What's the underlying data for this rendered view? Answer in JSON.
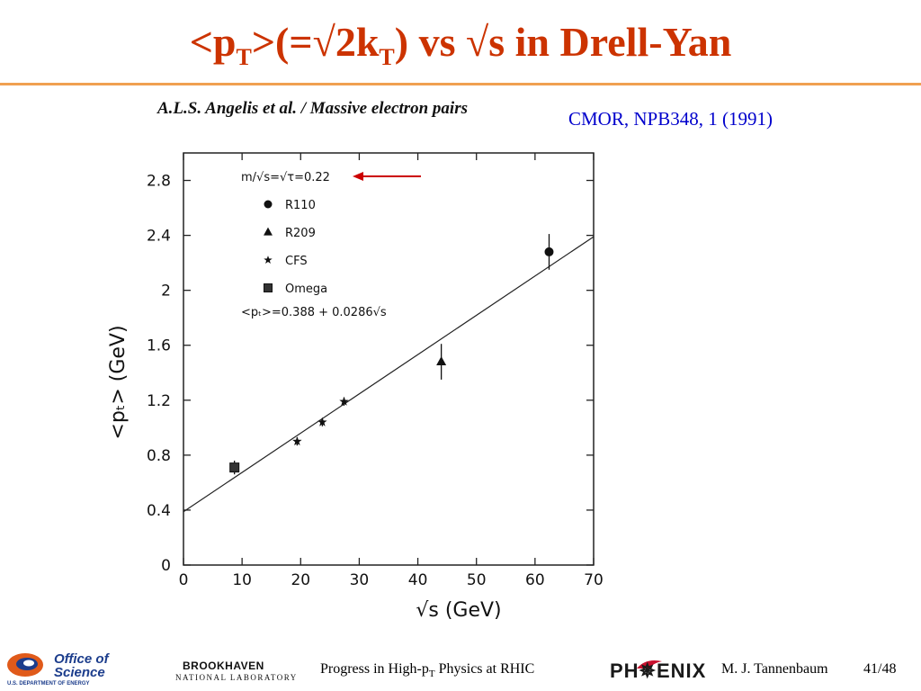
{
  "slide": {
    "title_parts": [
      "<p",
      "T",
      ">(=√2k",
      "T",
      ") vs √s in Drell-Yan"
    ],
    "paper_header": "A.L.S. Angelis et al.  /  Massive electron pairs",
    "citation": "CMOR, NPB348, 1 (1991)"
  },
  "colors": {
    "title": "#cc3300",
    "rule": "#f0a050",
    "citation": "#0000cc",
    "arrow": "#cc0000"
  },
  "chart_data": {
    "type": "scatter",
    "title": "",
    "xlabel": "√s (GeV)",
    "ylabel": "<pₜ> (GeV)",
    "xlim": [
      0,
      70
    ],
    "ylim": [
      0,
      3.0
    ],
    "xticks": [
      0,
      10,
      20,
      30,
      40,
      50,
      60,
      70
    ],
    "yticks": [
      0,
      0.4,
      0.8,
      1.2,
      1.6,
      2.0,
      2.4,
      2.8
    ],
    "ytick_labels": [
      "0",
      "0.4",
      "0.8",
      "1.2",
      "1.6",
      "2",
      "2.4",
      "2.8"
    ],
    "annotation": "m/√s=√τ=0.22",
    "fit_label": "<pₜ>=0.388 + 0.0286√s",
    "fit": {
      "intercept": 0.388,
      "slope": 0.0286
    },
    "legend_position": "top-left",
    "grid": false,
    "series": [
      {
        "name": "R110",
        "marker": "circle",
        "points": [
          {
            "x": 62.4,
            "y": 2.28,
            "err": 0.13
          }
        ]
      },
      {
        "name": "R209",
        "marker": "triangle",
        "points": [
          {
            "x": 44.0,
            "y": 1.48,
            "err": 0.13
          }
        ]
      },
      {
        "name": "CFS",
        "marker": "star",
        "points": [
          {
            "x": 19.4,
            "y": 0.9,
            "err": 0.03
          },
          {
            "x": 23.7,
            "y": 1.04,
            "err": 0.03
          },
          {
            "x": 27.4,
            "y": 1.19,
            "err": 0.03
          }
        ]
      },
      {
        "name": "Omega",
        "marker": "square",
        "points": [
          {
            "x": 8.7,
            "y": 0.71,
            "err": 0.05
          }
        ]
      }
    ]
  },
  "footer": {
    "doe_line1": "Office of",
    "doe_line2": "Science",
    "doe_line3": "U.S. DEPARTMENT OF ENERGY",
    "bnl_line1": "BROOKHAVEN",
    "bnl_line2": "NATIONAL LABORATORY",
    "center_parts": [
      "Progress in High-p",
      "T",
      " Physics at RHIC"
    ],
    "phenix": "PH✵ENIX",
    "author": "M. J. Tannenbaum",
    "page": "41/48"
  }
}
